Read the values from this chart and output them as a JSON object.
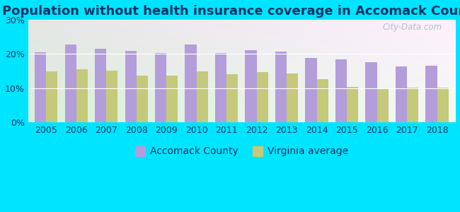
{
  "title": "Population without health insurance coverage in Accomack County",
  "years": [
    2005,
    2006,
    2007,
    2008,
    2009,
    2010,
    2011,
    2012,
    2013,
    2014,
    2015,
    2016,
    2017,
    2018
  ],
  "accomack": [
    20.4,
    22.8,
    21.5,
    20.9,
    20.3,
    22.8,
    20.3,
    21.0,
    20.6,
    18.8,
    18.4,
    17.5,
    16.3,
    16.6
  ],
  "virginia": [
    14.8,
    15.4,
    15.0,
    13.6,
    13.7,
    14.9,
    14.1,
    14.7,
    14.2,
    12.7,
    10.4,
    9.7,
    10.1,
    10.2
  ],
  "bar_color_accomack": "#b39ddb",
  "bar_color_virginia": "#c5c97a",
  "bg_outer": "#00e5ff",
  "ylim": [
    0,
    30
  ],
  "yticks": [
    0,
    10,
    20,
    30
  ],
  "ytick_labels": [
    "0%",
    "10%",
    "20%",
    "30%"
  ],
  "legend_label_accomack": "Accomack County",
  "legend_label_virginia": "Virginia average",
  "watermark": "City-Data.com",
  "title_fontsize": 13,
  "tick_fontsize": 9,
  "legend_fontsize": 10,
  "title_color": "#003366"
}
